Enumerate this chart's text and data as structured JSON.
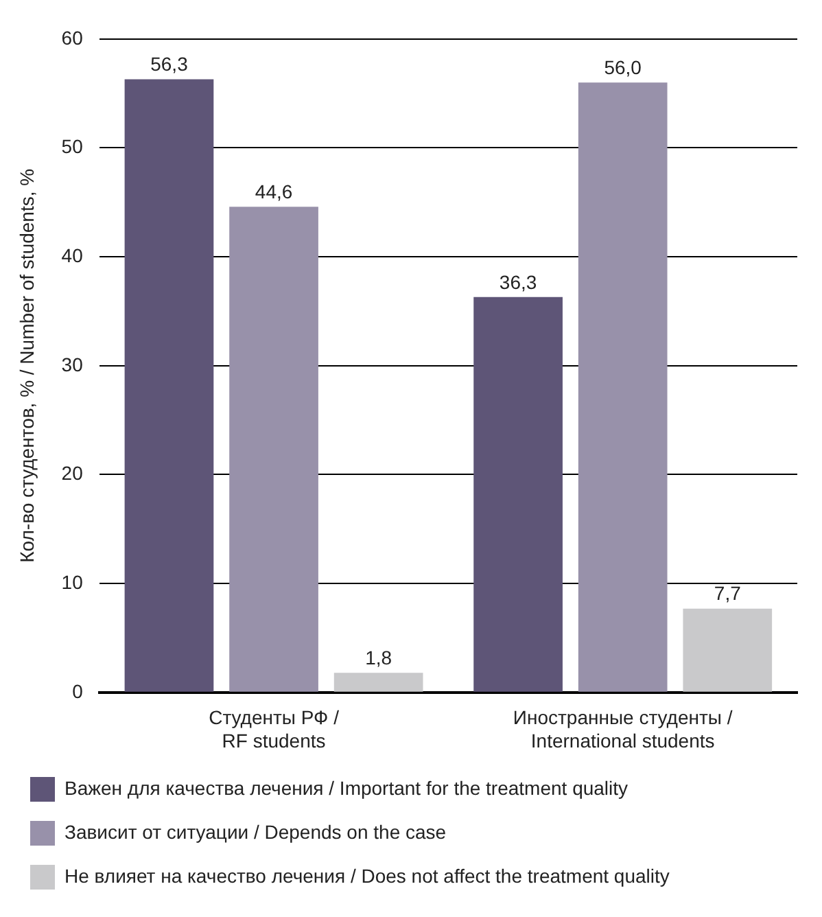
{
  "chart_data": {
    "type": "bar",
    "ylabel": "Кол-во студентов, % / Number of students, %",
    "categories": [
      "Студенты РФ / RF students",
      "Иностранные студенты / International students"
    ],
    "series": [
      {
        "name": "Важен для качества лечения / Important for the treatment quality",
        "color": "#5e5577",
        "values": [
          56.3,
          36.3
        ],
        "value_labels": [
          "56,3",
          "36,3"
        ]
      },
      {
        "name": "Зависит от ситуации / Depends on the case",
        "color": "#9891aa",
        "values": [
          44.6,
          56.0
        ],
        "value_labels": [
          "44,6",
          "56,0"
        ]
      },
      {
        "name": "Не влияет на качество лечения / Does not affect the treatment quality",
        "color": "#c9c9cb",
        "values": [
          1.8,
          7.7
        ],
        "value_labels": [
          "1,8",
          "7,7"
        ]
      }
    ],
    "ylim": [
      0,
      60
    ],
    "yticks": [
      0,
      10,
      20,
      30,
      40,
      50,
      60
    ],
    "grid": "y",
    "legend": "bottom"
  }
}
